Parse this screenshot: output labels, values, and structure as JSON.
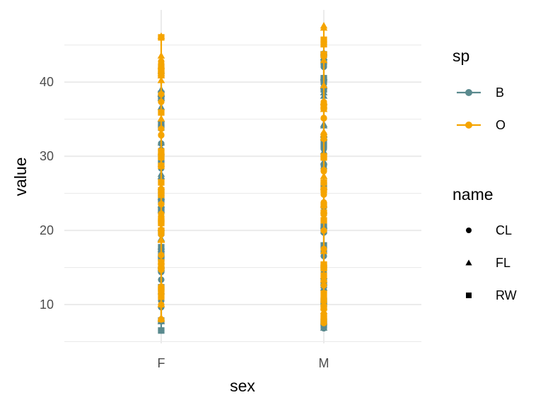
{
  "chart_data": {
    "type": "scatter",
    "xlabel": "sex",
    "ylabel": "value",
    "categories": [
      "F",
      "M"
    ],
    "y_ticks": [
      10,
      20,
      30,
      40
    ],
    "ylim": [
      5,
      48
    ],
    "grid": true,
    "colors": {
      "B": "#5a8a8e",
      "O": "#f5a400"
    },
    "legends": [
      {
        "title": "sp",
        "kind": "color",
        "items": [
          {
            "label": "B",
            "color": "#5a8a8e"
          },
          {
            "label": "O",
            "color": "#f5a400"
          }
        ]
      },
      {
        "title": "name",
        "kind": "shape",
        "items": [
          {
            "label": "CL",
            "shape": "circle"
          },
          {
            "label": "FL",
            "shape": "triangle"
          },
          {
            "label": "RW",
            "shape": "square"
          }
        ]
      }
    ],
    "series": [
      {
        "name": "B",
        "category": "F",
        "range": [
          6.5,
          41.5
        ]
      },
      {
        "name": "O",
        "category": "F",
        "range": [
          8.0,
          46.2
        ]
      },
      {
        "name": "B",
        "category": "M",
        "range": [
          6.8,
          44.0
        ]
      },
      {
        "name": "O",
        "category": "M",
        "range": [
          7.5,
          47.6
        ]
      }
    ]
  }
}
